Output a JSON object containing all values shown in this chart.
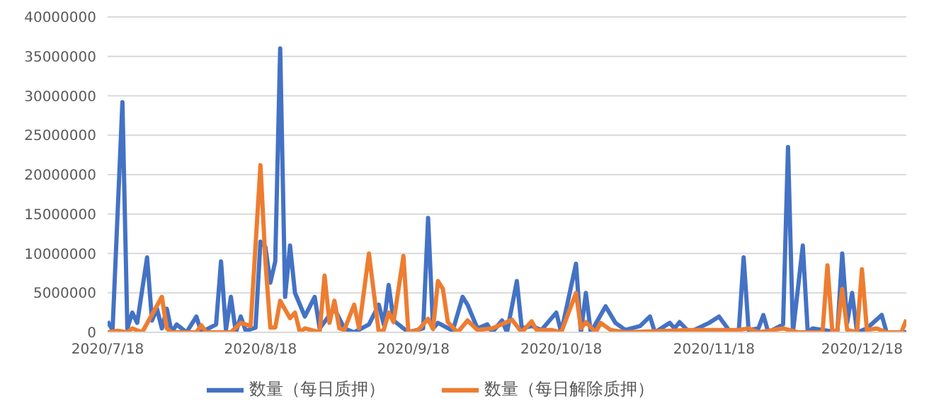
{
  "chart_data": {
    "type": "line",
    "xlim": [
      "2020-07-18",
      "2020-12-27"
    ],
    "xticks": [
      {
        "value": "2020-07-18",
        "label": "2020/7/18"
      },
      {
        "value": "2020-08-18",
        "label": "2020/8/18"
      },
      {
        "value": "2020-09-18",
        "label": "2020/9/18"
      },
      {
        "value": "2020-10-18",
        "label": "2020/10/18"
      },
      {
        "value": "2020-11-18",
        "label": "2020/11/18"
      },
      {
        "value": "2020-12-18",
        "label": "2020/12/18"
      }
    ],
    "ylim": [
      0,
      40000000
    ],
    "yticks": [
      0,
      5000000,
      10000000,
      15000000,
      20000000,
      25000000,
      30000000,
      35000000,
      40000000
    ],
    "grid": "y",
    "legend": "bottom",
    "marker": "none",
    "line_style": "solid",
    "series": [
      {
        "name": "数量（每日质押）",
        "color": "#4472c4",
        "x": [
          "2020-07-18",
          "2020-07-19",
          "2020-07-21",
          "2020-07-22",
          "2020-07-23",
          "2020-07-24",
          "2020-07-26",
          "2020-07-27",
          "2020-07-28",
          "2020-07-29",
          "2020-07-30",
          "2020-07-31",
          "2020-08-01",
          "2020-08-03",
          "2020-08-05",
          "2020-08-06",
          "2020-08-09",
          "2020-08-10",
          "2020-08-11",
          "2020-08-12",
          "2020-08-13",
          "2020-08-14",
          "2020-08-15",
          "2020-08-17",
          "2020-08-18",
          "2020-08-19",
          "2020-08-20",
          "2020-08-21",
          "2020-08-22",
          "2020-08-23",
          "2020-08-24",
          "2020-08-25",
          "2020-08-27",
          "2020-08-29",
          "2020-08-30",
          "2020-09-02",
          "2020-09-04",
          "2020-09-06",
          "2020-09-09",
          "2020-09-11",
          "2020-09-12",
          "2020-09-13",
          "2020-09-14",
          "2020-09-17",
          "2020-09-20",
          "2020-09-21",
          "2020-09-22",
          "2020-09-23",
          "2020-09-26",
          "2020-09-28",
          "2020-09-29",
          "2020-10-01",
          "2020-10-03",
          "2020-10-04",
          "2020-10-06",
          "2020-10-07",
          "2020-10-09",
          "2020-10-10",
          "2020-10-12",
          "2020-10-14",
          "2020-10-17",
          "2020-10-18",
          "2020-10-21",
          "2020-10-22",
          "2020-10-23",
          "2020-10-24",
          "2020-10-27",
          "2020-10-29",
          "2020-10-31",
          "2020-11-03",
          "2020-11-05",
          "2020-11-06",
          "2020-11-09",
          "2020-11-10",
          "2020-11-11",
          "2020-11-13",
          "2020-11-17",
          "2020-11-19",
          "2020-11-21",
          "2020-11-23",
          "2020-11-24",
          "2020-11-25",
          "2020-11-27",
          "2020-11-28",
          "2020-11-29",
          "2020-12-02",
          "2020-12-03",
          "2020-12-04",
          "2020-12-06",
          "2020-12-07",
          "2020-12-08",
          "2020-12-11",
          "2020-12-13",
          "2020-12-14",
          "2020-12-15",
          "2020-12-16",
          "2020-12-17",
          "2020-12-19",
          "2020-12-22",
          "2020-12-23",
          "2020-12-27"
        ],
        "values": [
          1400000,
          300000,
          29200000,
          500000,
          2500000,
          1200000,
          9500000,
          1500000,
          3000000,
          500000,
          3000000,
          0,
          1000000,
          0,
          2000000,
          0,
          1000000,
          9000000,
          300000,
          4500000,
          0,
          2000000,
          200000,
          600000,
          11500000,
          10800000,
          6300000,
          9000000,
          36000000,
          4500000,
          11000000,
          5000000,
          2000000,
          4500000,
          500000,
          3000000,
          500000,
          0,
          1000000,
          3500000,
          1000000,
          6000000,
          1500000,
          0,
          500000,
          14500000,
          500000,
          1200000,
          200000,
          4500000,
          3500000,
          500000,
          1000000,
          0,
          1500000,
          0,
          6500000,
          500000,
          800000,
          300000,
          2500000,
          0,
          8700000,
          0,
          5000000,
          0,
          3300000,
          1200000,
          300000,
          800000,
          2000000,
          0,
          1200000,
          500000,
          1300000,
          0,
          1200000,
          2000000,
          300000,
          0,
          9500000,
          300000,
          500000,
          2200000,
          0,
          1000000,
          23500000,
          0,
          11000000,
          0,
          500000,
          200000,
          0,
          10000000,
          1200000,
          5000000,
          0,
          500000,
          2200000,
          0,
          0
        ]
      },
      {
        "name": "数量（每日解除质押）",
        "color": "#ed7d31",
        "x": [
          "2020-07-18",
          "2020-07-20",
          "2020-07-22",
          "2020-07-23",
          "2020-07-25",
          "2020-07-29",
          "2020-07-30",
          "2020-07-31",
          "2020-08-05",
          "2020-08-06",
          "2020-08-07",
          "2020-08-12",
          "2020-08-14",
          "2020-08-16",
          "2020-08-18",
          "2020-08-19",
          "2020-08-20",
          "2020-08-21",
          "2020-08-22",
          "2020-08-24",
          "2020-08-25",
          "2020-08-26",
          "2020-08-27",
          "2020-08-30",
          "2020-08-31",
          "2020-09-01",
          "2020-09-02",
          "2020-09-03",
          "2020-09-04",
          "2020-09-06",
          "2020-09-07",
          "2020-09-09",
          "2020-09-11",
          "2020-09-12",
          "2020-09-13",
          "2020-09-14",
          "2020-09-16",
          "2020-09-17",
          "2020-09-19",
          "2020-09-21",
          "2020-09-22",
          "2020-09-23",
          "2020-09-24",
          "2020-09-25",
          "2020-09-27",
          "2020-09-29",
          "2020-10-01",
          "2020-10-04",
          "2020-10-08",
          "2020-10-10",
          "2020-10-12",
          "2020-10-13",
          "2020-10-16",
          "2020-10-18",
          "2020-10-21",
          "2020-10-22",
          "2020-10-23",
          "2020-10-25",
          "2020-10-26",
          "2020-10-28",
          "2020-10-31",
          "2020-11-13",
          "2020-11-18",
          "2020-11-23",
          "2020-11-25",
          "2020-11-27",
          "2020-12-02",
          "2020-12-05",
          "2020-12-10",
          "2020-12-11",
          "2020-12-12",
          "2020-12-13",
          "2020-12-14",
          "2020-12-15",
          "2020-12-17",
          "2020-12-18",
          "2020-12-19",
          "2020-12-21",
          "2020-12-23",
          "2020-12-26",
          "2020-12-27"
        ],
        "values": [
          0,
          200000,
          0,
          500000,
          0,
          4500000,
          500000,
          0,
          0,
          900000,
          0,
          0,
          1200000,
          800000,
          21200000,
          9000000,
          600000,
          600000,
          4000000,
          1800000,
          2500000,
          0,
          500000,
          0,
          7200000,
          1200000,
          4000000,
          500000,
          300000,
          3500000,
          500000,
          10000000,
          0,
          300000,
          2500000,
          1300000,
          9700000,
          0,
          300000,
          1700000,
          400000,
          6500000,
          5500000,
          1300000,
          0,
          1500000,
          300000,
          500000,
          1600000,
          0,
          1400000,
          300000,
          300000,
          0,
          5000000,
          500000,
          1300000,
          0,
          1200000,
          300000,
          0,
          300000,
          300000,
          300000,
          500000,
          0,
          500000,
          0,
          0,
          8500000,
          0,
          300000,
          5500000,
          300000,
          0,
          8000000,
          300000,
          500000,
          0,
          0,
          1600000
        ]
      }
    ]
  }
}
